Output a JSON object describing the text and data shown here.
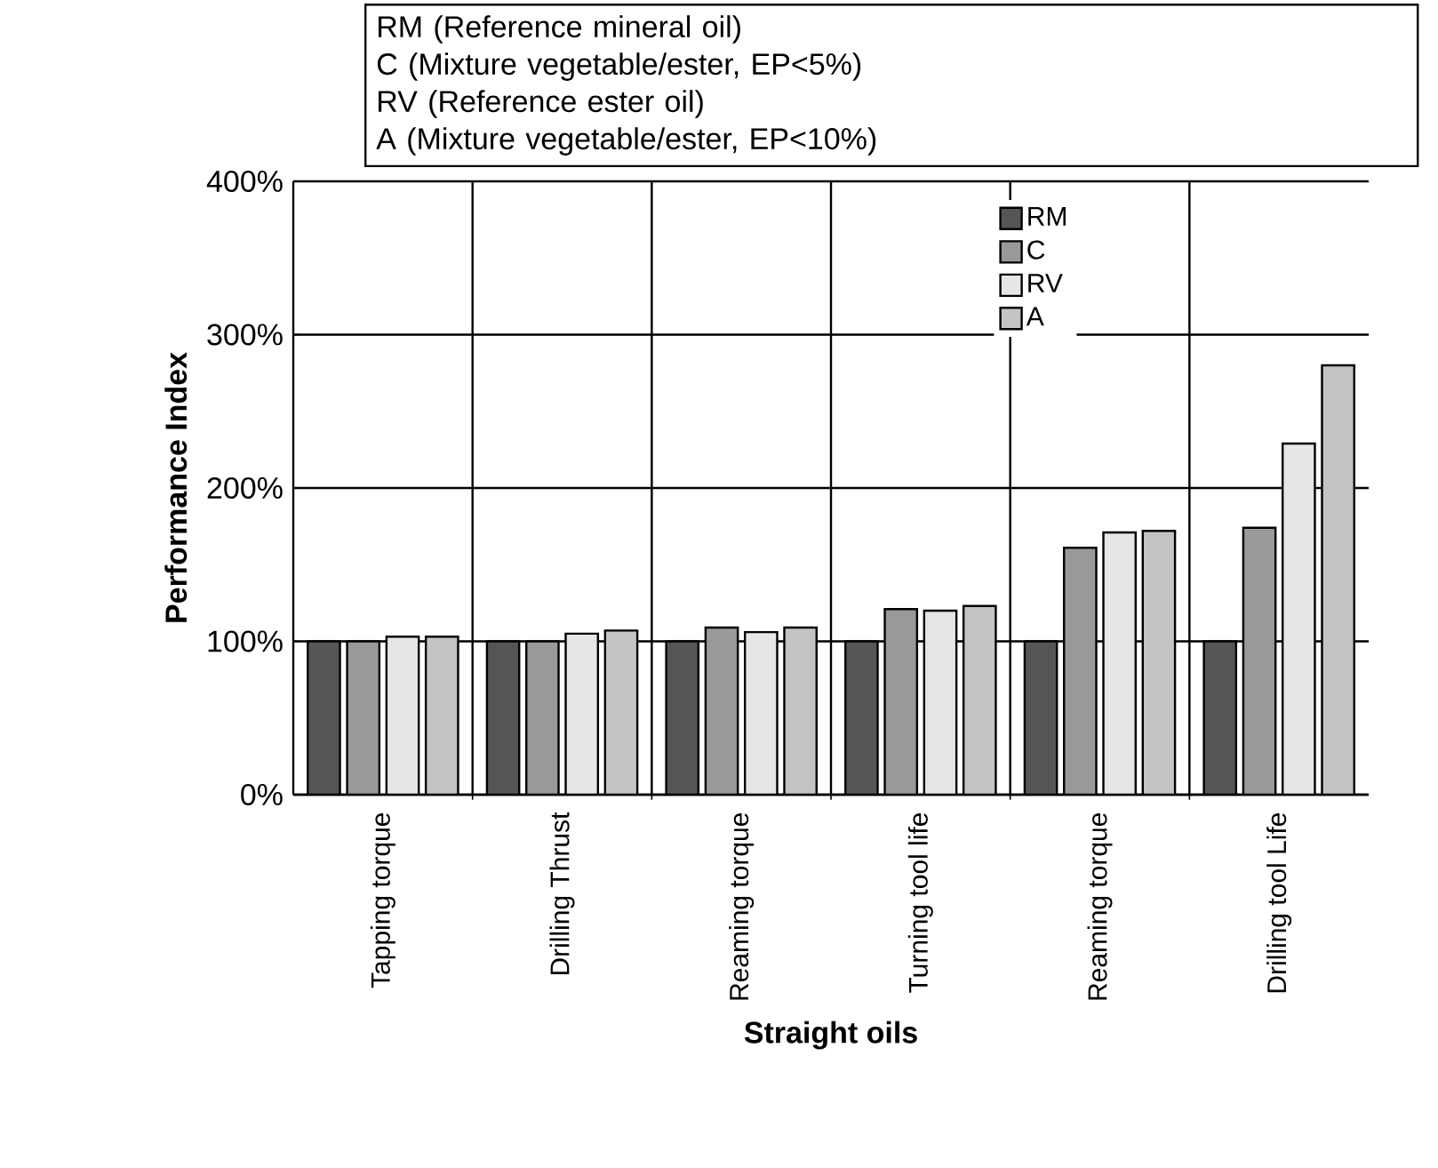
{
  "chart_data": {
    "type": "bar",
    "ylabel": "Performance Index",
    "xlabel": "Straight oils",
    "categories": [
      "Tapping torque",
      "Drilling Thrust",
      "Reaming torque",
      "Turning tool life",
      "Reaming torque",
      "Drilling tool Life"
    ],
    "series": [
      {
        "name": "RM",
        "color": "#555555",
        "values": [
          100,
          100,
          100,
          100,
          100,
          100
        ]
      },
      {
        "name": "C",
        "color": "#999999",
        "values": [
          100,
          100,
          109,
          121,
          161,
          174
        ]
      },
      {
        "name": "RV",
        "color": "#e6e6e6",
        "values": [
          103,
          105,
          106,
          120,
          171,
          229
        ]
      },
      {
        "name": "A",
        "color": "#c4c4c4",
        "values": [
          103,
          107,
          109,
          123,
          172,
          280
        ]
      }
    ],
    "ylim": [
      0,
      400
    ],
    "yticks": [
      {
        "value": 0,
        "label": "0%"
      },
      {
        "value": 100,
        "label": "100%"
      },
      {
        "value": 200,
        "label": "200%"
      },
      {
        "value": 300,
        "label": "300%"
      },
      {
        "value": 400,
        "label": "400%"
      }
    ],
    "grid": true,
    "legend": "top",
    "annotations": [
      "RM (Reference mineral oil)",
      "C    (Mixture vegetable/ester, EP<5%)",
      "RV  (Reference ester oil)",
      "A    (Mixture vegetable/ester, EP<10%)"
    ]
  }
}
